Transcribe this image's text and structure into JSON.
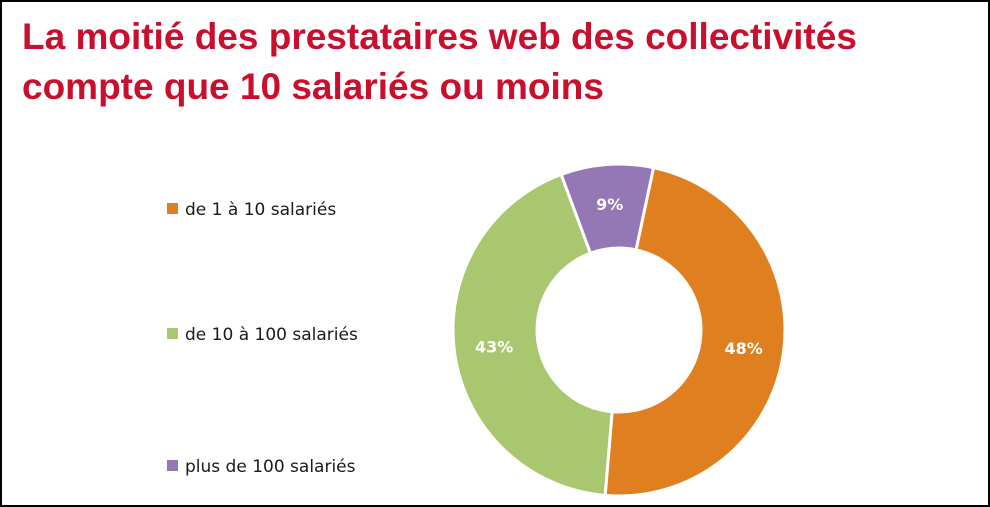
{
  "title_lines": [
    "La moitié des prestataires web des collectivités",
    "compte que 10 salariés ou moins"
  ],
  "colors": {
    "title": "#c8102e",
    "series": [
      "#e07f1f",
      "#a8c76e",
      "#9478b5"
    ]
  },
  "chart_data": {
    "type": "pie",
    "style": "donut",
    "title": "La moitié des prestataires web des collectivités compte que 10 salariés ou moins",
    "categories": [
      "de 1 à 10 salariés",
      "de 10 à 100 salariés",
      "plus de 100 salariés"
    ],
    "values": [
      48,
      43,
      9
    ],
    "unit": "%",
    "data_labels": [
      "48%",
      "43%",
      "9%"
    ],
    "legend": {
      "placement": "left",
      "entries": [
        "de 1 à 10 salariés",
        "de 10 à 100 salariés",
        "plus de 100 salariés"
      ]
    }
  }
}
